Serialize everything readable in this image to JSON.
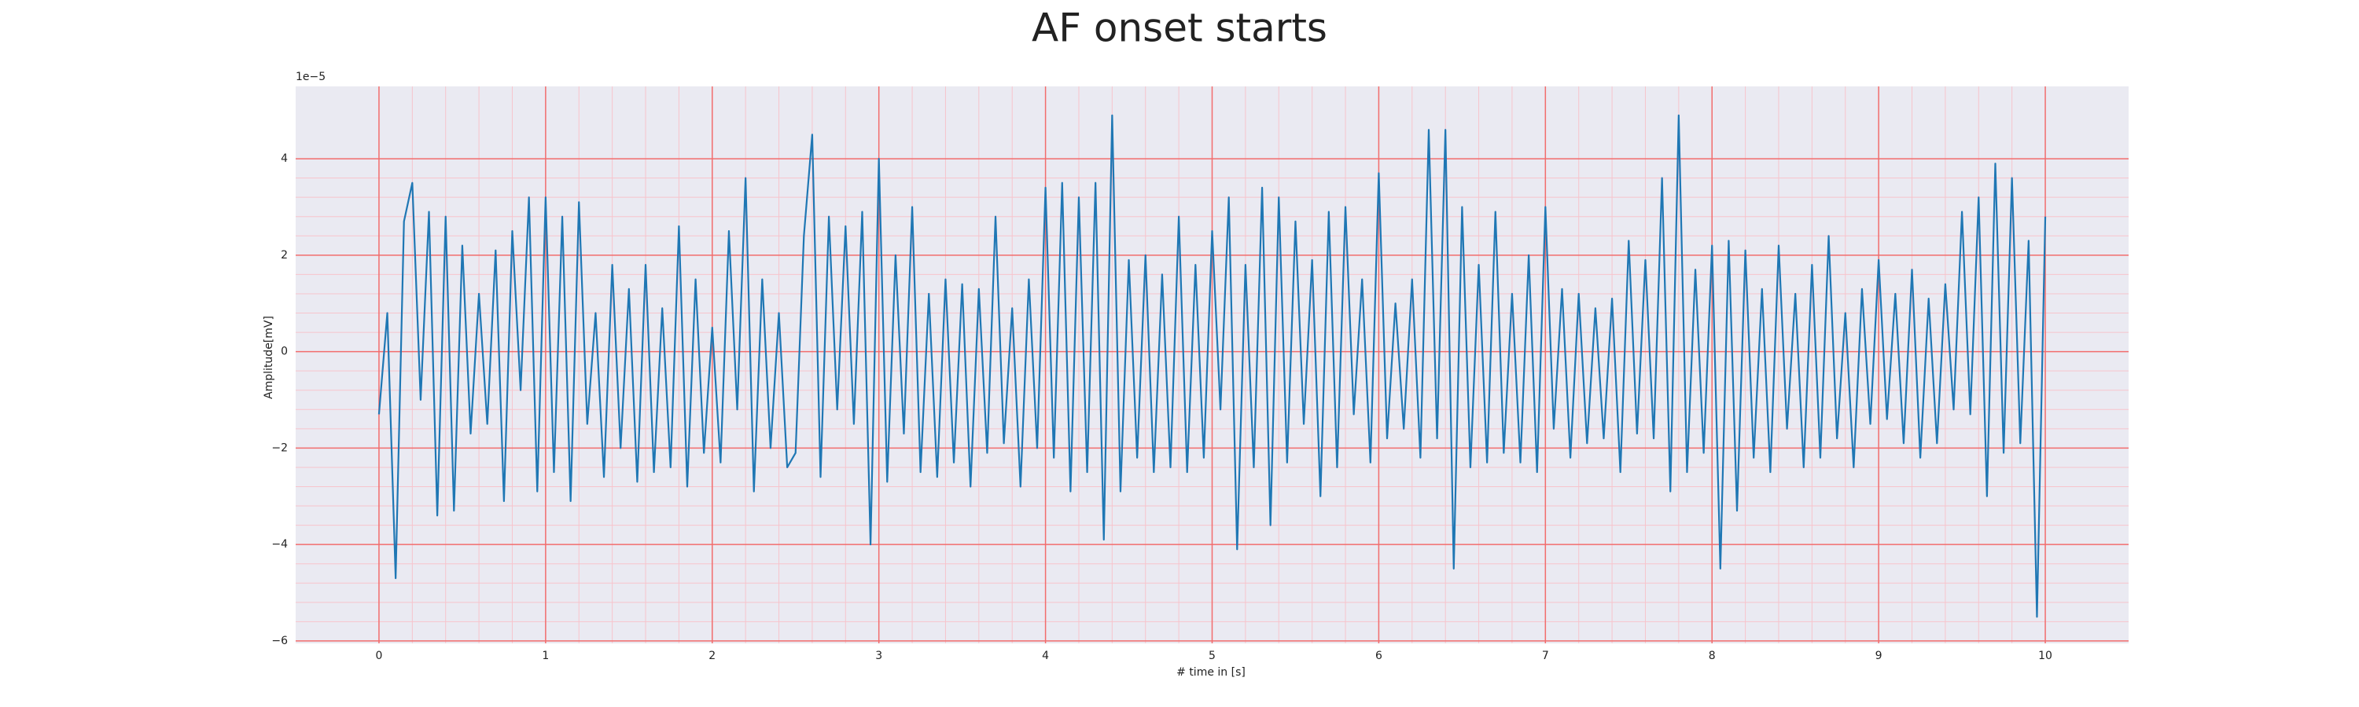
{
  "chart_data": {
    "type": "line",
    "title": "AF onset starts",
    "xlabel": "# time in [s]",
    "ylabel": "Amplitude[mV]",
    "y_offset_label": "1e−5",
    "xlim": [
      -0.5,
      10.5
    ],
    "ylim": [
      -6.05,
      5.5
    ],
    "xticks": [
      0,
      1,
      2,
      3,
      4,
      5,
      6,
      7,
      8,
      9,
      10
    ],
    "yticks": [
      {
        "value": -6,
        "label": "−6"
      },
      {
        "value": -4,
        "label": "−4"
      },
      {
        "value": -2,
        "label": "−2"
      },
      0,
      2,
      4
    ],
    "grid": true,
    "minor_grid": true,
    "grid_color": "#f26d6d",
    "minor_grid_color": "#f7c4cc",
    "background": "#eaeaf2",
    "series": [
      {
        "color": "#1f77b4",
        "x": [
          0,
          0.05,
          0.1,
          0.15,
          0.2,
          0.25,
          0.3,
          0.35,
          0.4,
          0.45,
          0.5,
          0.55,
          0.6,
          0.65,
          0.7,
          0.75,
          0.8,
          0.85,
          0.9,
          0.95,
          1,
          1.05,
          1.1,
          1.15,
          1.2,
          1.25,
          1.3,
          1.35,
          1.4,
          1.45,
          1.5,
          1.55,
          1.6,
          1.65,
          1.7,
          1.75,
          1.8,
          1.85,
          1.9,
          1.95,
          2,
          2.05,
          2.1,
          2.15,
          2.2,
          2.25,
          2.3,
          2.35,
          2.4,
          2.45,
          2.5,
          2.55,
          2.6,
          2.65,
          2.7,
          2.75,
          2.8,
          2.85,
          2.9,
          2.95,
          3,
          3.05,
          3.1,
          3.15,
          3.2,
          3.25,
          3.3,
          3.35,
          3.4,
          3.45,
          3.5,
          3.55,
          3.6,
          3.65,
          3.7,
          3.75,
          3.8,
          3.85,
          3.9,
          3.95,
          4,
          4.05,
          4.1,
          4.15,
          4.2,
          4.25,
          4.3,
          4.35,
          4.4,
          4.45,
          4.5,
          4.55,
          4.6,
          4.65,
          4.7,
          4.75,
          4.8,
          4.85,
          4.9,
          4.95,
          5,
          5.05,
          5.1,
          5.15,
          5.2,
          5.25,
          5.3,
          5.35,
          5.4,
          5.45,
          5.5,
          5.55,
          5.6,
          5.65,
          5.7,
          5.75,
          5.8,
          5.85,
          5.9,
          5.95,
          6,
          6.05,
          6.1,
          6.15,
          6.2,
          6.25,
          6.3,
          6.35,
          6.4,
          6.45,
          6.5,
          6.55,
          6.6,
          6.65,
          6.7,
          6.75,
          6.8,
          6.85,
          6.9,
          6.95,
          7,
          7.05,
          7.1,
          7.15,
          7.2,
          7.25,
          7.3,
          7.35,
          7.4,
          7.45,
          7.5,
          7.55,
          7.6,
          7.65,
          7.7,
          7.75,
          7.8,
          7.85,
          7.9,
          7.95,
          8,
          8.05,
          8.1,
          8.15,
          8.2,
          8.25,
          8.3,
          8.35,
          8.4,
          8.45,
          8.5,
          8.55,
          8.6,
          8.65,
          8.7,
          8.75,
          8.8,
          8.85,
          8.9,
          8.95,
          9,
          9.05,
          9.1,
          9.15,
          9.2,
          9.25,
          9.3,
          9.35,
          9.4,
          9.45,
          9.5,
          9.55,
          9.6,
          9.65,
          9.7,
          9.75,
          9.8,
          9.85,
          9.9,
          9.95,
          10
        ],
        "values": [
          -1.3,
          0.8,
          -4.7,
          2.7,
          3.5,
          -1.0,
          2.9,
          -3.4,
          2.8,
          -3.3,
          2.2,
          -1.7,
          1.2,
          -1.5,
          2.1,
          -3.1,
          2.5,
          -0.8,
          3.2,
          -2.9,
          3.2,
          -2.5,
          2.8,
          -3.1,
          3.1,
          -1.5,
          0.8,
          -2.6,
          1.8,
          -2.0,
          1.3,
          -2.7,
          1.8,
          -2.5,
          0.9,
          -2.4,
          2.6,
          -2.8,
          1.5,
          -2.1,
          0.5,
          -2.3,
          2.5,
          -1.2,
          3.6,
          -2.9,
          1.5,
          -2.0,
          0.8,
          -2.4,
          -2.1,
          2.4,
          4.5,
          -2.6,
          2.8,
          -1.2,
          2.6,
          -1.5,
          2.9,
          -4.0,
          4.0,
          -2.7,
          2.0,
          -1.7,
          3.0,
          -2.5,
          1.2,
          -2.6,
          1.5,
          -2.3,
          1.4,
          -2.8,
          1.3,
          -2.1,
          2.8,
          -1.9,
          0.9,
          -2.8,
          1.5,
          -2.0,
          3.4,
          -2.2,
          3.5,
          -2.9,
          3.2,
          -2.5,
          3.5,
          -3.9,
          4.9,
          -2.9,
          1.9,
          -2.2,
          2.0,
          -2.5,
          1.6,
          -2.4,
          2.8,
          -2.5,
          1.8,
          -2.2,
          2.5,
          -1.2,
          3.2,
          -4.1,
          1.8,
          -2.4,
          3.4,
          -3.6,
          3.2,
          -2.3,
          2.7,
          -1.5,
          1.9,
          -3.0,
          2.9,
          -2.4,
          3.0,
          -1.3,
          1.5,
          -2.3,
          3.7,
          -1.8,
          1.0,
          -1.6,
          1.5,
          -2.2,
          4.6,
          -1.8,
          4.6,
          -4.5,
          3.0,
          -2.4,
          1.8,
          -2.3,
          2.9,
          -2.1,
          1.2,
          -2.3,
          2.0,
          -2.5,
          3.0,
          -1.6,
          1.3,
          -2.2,
          1.2,
          -1.9,
          0.9,
          -1.8,
          1.1,
          -2.5,
          2.3,
          -1.7,
          1.9,
          -1.8,
          3.6,
          -2.9,
          4.9,
          -2.5,
          1.7,
          -2.1,
          2.2,
          -4.5,
          2.3,
          -3.3,
          2.1,
          -2.2,
          1.3,
          -2.5,
          2.2,
          -1.6,
          1.2,
          -2.4,
          1.8,
          -2.2,
          2.4,
          -1.8,
          0.8,
          -2.4,
          1.3,
          -1.5,
          1.9,
          -1.4,
          1.2,
          -1.9,
          1.7,
          -2.2,
          1.1,
          -1.9,
          1.4,
          -1.2,
          2.9,
          -1.3,
          3.2,
          -3.0,
          3.9,
          -2.1,
          3.6,
          -1.9,
          2.3,
          -5.5,
          2.8
        ]
      }
    ]
  }
}
